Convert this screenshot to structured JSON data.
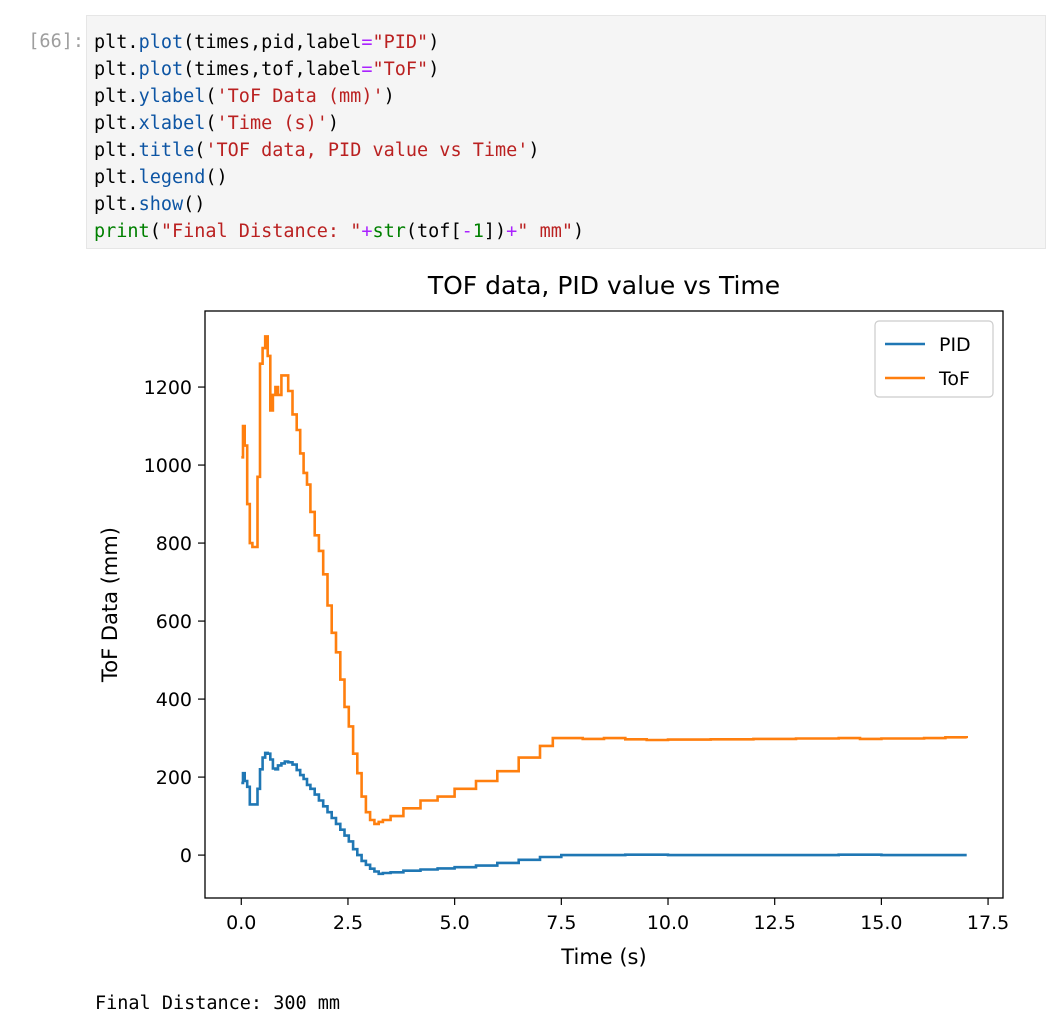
{
  "cell": {
    "prompt": "[66]:",
    "code": [
      [
        {
          "t": "plt."
        },
        {
          "t": "plot",
          "c": "t-fn"
        },
        {
          "t": "(times,pid,label"
        },
        {
          "t": "=",
          "c": "t-op"
        },
        {
          "t": "\"PID\"",
          "c": "t-str"
        },
        {
          "t": ")"
        }
      ],
      [
        {
          "t": "plt."
        },
        {
          "t": "plot",
          "c": "t-fn"
        },
        {
          "t": "(times,tof,label"
        },
        {
          "t": "=",
          "c": "t-op"
        },
        {
          "t": "\"ToF\"",
          "c": "t-str"
        },
        {
          "t": ")"
        }
      ],
      [
        {
          "t": "plt."
        },
        {
          "t": "ylabel",
          "c": "t-fn"
        },
        {
          "t": "("
        },
        {
          "t": "'ToF Data (mm)'",
          "c": "t-str"
        },
        {
          "t": ")"
        }
      ],
      [
        {
          "t": "plt."
        },
        {
          "t": "xlabel",
          "c": "t-fn"
        },
        {
          "t": "("
        },
        {
          "t": "'Time (s)'",
          "c": "t-str"
        },
        {
          "t": ")"
        }
      ],
      [
        {
          "t": "plt."
        },
        {
          "t": "title",
          "c": "t-fn"
        },
        {
          "t": "("
        },
        {
          "t": "'TOF data, PID value vs Time'",
          "c": "t-str"
        },
        {
          "t": ")"
        }
      ],
      [
        {
          "t": "plt."
        },
        {
          "t": "legend",
          "c": "t-fn"
        },
        {
          "t": "()"
        }
      ],
      [
        {
          "t": "plt."
        },
        {
          "t": "show",
          "c": "t-fn"
        },
        {
          "t": "()"
        }
      ],
      [
        {
          "t": "print",
          "c": "t-bi"
        },
        {
          "t": "("
        },
        {
          "t": "\"Final Distance: \"",
          "c": "t-str"
        },
        {
          "t": "+",
          "c": "t-op"
        },
        {
          "t": "str",
          "c": "t-bi"
        },
        {
          "t": "(tof["
        },
        {
          "t": "-",
          "c": "t-op"
        },
        {
          "t": "1",
          "c": "t-num"
        },
        {
          "t": "])"
        },
        {
          "t": "+",
          "c": "t-op"
        },
        {
          "t": "\" mm\"",
          "c": "t-str"
        },
        {
          "t": ")"
        }
      ]
    ]
  },
  "output": {
    "text": "Final Distance: 300 mm"
  },
  "chart_data": {
    "type": "line",
    "title": "TOF data, PID value vs Time",
    "xlabel": "Time (s)",
    "ylabel": "ToF Data (mm)",
    "xlim": [
      -0.85,
      17.85
    ],
    "ylim": [
      -110,
      1395
    ],
    "xticks": [
      0.0,
      2.5,
      5.0,
      7.5,
      10.0,
      12.5,
      15.0,
      17.5
    ],
    "xtick_labels": [
      "0.0",
      "2.5",
      "5.0",
      "7.5",
      "10.0",
      "12.5",
      "15.0",
      "17.5"
    ],
    "yticks": [
      0,
      200,
      400,
      600,
      800,
      1000,
      1200
    ],
    "ytick_labels": [
      "0",
      "200",
      "400",
      "600",
      "800",
      "1000",
      "1200"
    ],
    "grid": false,
    "legend": "top-right",
    "series": [
      {
        "name": "PID",
        "color": "#1f77b4",
        "x": [
          0.0,
          0.04,
          0.08,
          0.14,
          0.2,
          0.26,
          0.32,
          0.38,
          0.44,
          0.5,
          0.56,
          0.62,
          0.68,
          0.74,
          0.8,
          0.86,
          0.94,
          1.02,
          1.1,
          1.2,
          1.3,
          1.38,
          1.46,
          1.54,
          1.62,
          1.72,
          1.82,
          1.92,
          2.02,
          2.12,
          2.22,
          2.32,
          2.42,
          2.52,
          2.62,
          2.72,
          2.82,
          2.92,
          3.02,
          3.12,
          3.22,
          3.32,
          3.5,
          3.8,
          4.2,
          4.6,
          5.0,
          5.5,
          6.0,
          6.5,
          7.0,
          7.5,
          8.0,
          9.0,
          10.0,
          11.0,
          12.0,
          13.0,
          14.0,
          15.0,
          16.0,
          17.0
        ],
        "y": [
          185,
          210,
          190,
          175,
          130,
          130,
          130,
          170,
          220,
          250,
          262,
          260,
          245,
          222,
          220,
          230,
          235,
          240,
          238,
          232,
          218,
          205,
          195,
          180,
          170,
          155,
          140,
          125,
          110,
          95,
          80,
          65,
          50,
          35,
          15,
          0,
          -15,
          -25,
          -35,
          -42,
          -48,
          -46,
          -44,
          -40,
          -37,
          -34,
          -31,
          -27,
          -20,
          -12,
          -5,
          0,
          0,
          1,
          0,
          0,
          0,
          0,
          1,
          0,
          0,
          0
        ]
      },
      {
        "name": "ToF",
        "color": "#ff7f0e",
        "x": [
          0.0,
          0.04,
          0.08,
          0.14,
          0.2,
          0.26,
          0.32,
          0.38,
          0.44,
          0.5,
          0.56,
          0.62,
          0.68,
          0.74,
          0.8,
          0.86,
          0.94,
          1.02,
          1.1,
          1.2,
          1.3,
          1.38,
          1.46,
          1.54,
          1.62,
          1.72,
          1.82,
          1.92,
          2.02,
          2.12,
          2.22,
          2.32,
          2.42,
          2.52,
          2.62,
          2.72,
          2.82,
          2.92,
          3.02,
          3.12,
          3.22,
          3.32,
          3.5,
          3.8,
          4.2,
          4.6,
          5.0,
          5.5,
          6.0,
          6.5,
          7.0,
          7.3,
          7.6,
          8.0,
          8.5,
          9.0,
          9.5,
          10.0,
          11.0,
          12.0,
          13.0,
          14.0,
          14.5,
          15.0,
          16.0,
          16.5,
          17.0
        ],
        "y": [
          1020,
          1100,
          1050,
          900,
          800,
          790,
          790,
          970,
          1260,
          1300,
          1330,
          1280,
          1140,
          1180,
          1200,
          1180,
          1230,
          1230,
          1190,
          1130,
          1090,
          1030,
          980,
          950,
          880,
          820,
          780,
          720,
          640,
          570,
          520,
          450,
          380,
          330,
          260,
          210,
          150,
          110,
          90,
          80,
          85,
          90,
          100,
          120,
          140,
          150,
          170,
          190,
          215,
          250,
          280,
          300,
          300,
          298,
          300,
          297,
          295,
          296,
          297,
          298,
          299,
          300,
          298,
          299,
          300,
          302,
          300
        ]
      }
    ]
  }
}
